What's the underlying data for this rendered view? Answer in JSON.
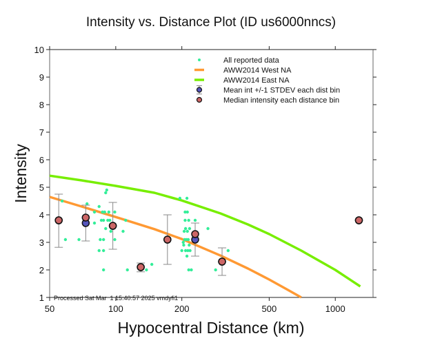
{
  "chart_data": {
    "type": "scatter",
    "title": "Intensity vs. Distance Plot (ID us6000nncs)",
    "xlabel": "Hypocentral Distance (km)",
    "ylabel": "Intensity",
    "xscale": "log",
    "xlim": [
      50,
      1400
    ],
    "ylim": [
      1,
      10
    ],
    "xticks": [
      50,
      100,
      200,
      500,
      1000
    ],
    "xtick_labels": [
      "50",
      "100",
      "200",
      "500",
      "1000"
    ],
    "yticks": [
      1,
      2,
      3,
      4,
      5,
      6,
      7,
      8,
      9,
      10
    ],
    "ytick_labels": [
      "1",
      "2",
      "3",
      "4",
      "5",
      "6",
      "7",
      "8",
      "9",
      "10"
    ],
    "grid": false,
    "legend_position": "top-right",
    "legend": [
      {
        "key": "all",
        "label": "All reported data",
        "color": "#33ee99"
      },
      {
        "key": "west",
        "label": "AWW2014 West NA",
        "color": "#ff9933"
      },
      {
        "key": "east",
        "label": "AWW2014 East NA",
        "color": "#77ee00"
      },
      {
        "key": "mean",
        "label": "Mean int +/-1 STDEV each dist bin",
        "color": "#5555bb"
      },
      {
        "key": "median",
        "label": "Median intensity each distance bin",
        "color": "#cc6666"
      }
    ],
    "footnote": "Processed Sat Mar  1 15:40:57 2025 vmdyfi1",
    "series": [
      {
        "name": "AWW2014 East NA",
        "kind": "line",
        "x": [
          50,
          70,
          100,
          150,
          200,
          300,
          400,
          500,
          700,
          1000,
          1300
        ],
        "y": [
          5.42,
          5.25,
          5.05,
          4.8,
          4.52,
          4.05,
          3.65,
          3.3,
          2.7,
          2.0,
          1.4
        ]
      },
      {
        "name": "AWW2014 West NA",
        "kind": "line",
        "x": [
          50,
          70,
          100,
          150,
          200,
          300,
          400,
          500,
          600,
          700
        ],
        "y": [
          4.65,
          4.3,
          3.92,
          3.48,
          3.12,
          2.52,
          2.05,
          1.65,
          1.3,
          1.0
        ]
      },
      {
        "name": "All reported data",
        "kind": "scatter",
        "points": [
          [
            57,
            4.5
          ],
          [
            59,
            3.1
          ],
          [
            68,
            3.1
          ],
          [
            74,
            4.4
          ],
          [
            80,
            3.7
          ],
          [
            80,
            4.1
          ],
          [
            84,
            2.7
          ],
          [
            84,
            4.3
          ],
          [
            85,
            3.1
          ],
          [
            86,
            3.8
          ],
          [
            87,
            4.1
          ],
          [
            88,
            2.0
          ],
          [
            88,
            2.7
          ],
          [
            88,
            3.1
          ],
          [
            88,
            3.8
          ],
          [
            89,
            4.1
          ],
          [
            90,
            4.8
          ],
          [
            90,
            3.5
          ],
          [
            91,
            4.9
          ],
          [
            92,
            3.8
          ],
          [
            93,
            4.1
          ],
          [
            94,
            3.8
          ],
          [
            95,
            3.4
          ],
          [
            99,
            4.1
          ],
          [
            99,
            3.1
          ],
          [
            108,
            3.4
          ],
          [
            111,
            3.8
          ],
          [
            113,
            2.0
          ],
          [
            138,
            2.0
          ],
          [
            146,
            2.2
          ],
          [
            196,
            4.6
          ],
          [
            200,
            2.7
          ],
          [
            203,
            3.0
          ],
          [
            204,
            2.9
          ],
          [
            205,
            3.4
          ],
          [
            206,
            3.1
          ],
          [
            207,
            4.1
          ],
          [
            207,
            3.8
          ],
          [
            208,
            2.7
          ],
          [
            208,
            3.5
          ],
          [
            210,
            3.1
          ],
          [
            211,
            4.6
          ],
          [
            211,
            2.5
          ],
          [
            212,
            4.1
          ],
          [
            212,
            3.4
          ],
          [
            213,
            2.7
          ],
          [
            214,
            3.1
          ],
          [
            215,
            2.0
          ],
          [
            215,
            3.8
          ],
          [
            216,
            2.9
          ],
          [
            217,
            3.5
          ],
          [
            218,
            2.7
          ],
          [
            221,
            2.0
          ],
          [
            230,
            3.8
          ],
          [
            263,
            3.5
          ],
          [
            285,
            2.0
          ],
          [
            325,
            2.7
          ]
        ]
      },
      {
        "name": "Mean int +/-1 STDEV each dist bin",
        "kind": "errorbar",
        "points": [
          {
            "x": 55,
            "y": 3.8,
            "ylow": 2.82,
            "yhigh": 4.75
          },
          {
            "x": 73,
            "y": 3.7,
            "ylow": 3.05,
            "yhigh": 4.35
          },
          {
            "x": 97,
            "y": 3.6,
            "ylow": 2.75,
            "yhigh": 4.45
          },
          {
            "x": 130,
            "y": 2.1,
            "ylow": 1.93,
            "yhigh": 2.25
          },
          {
            "x": 172,
            "y": 3.1,
            "ylow": 2.2,
            "yhigh": 4.0
          },
          {
            "x": 230,
            "y": 3.1,
            "ylow": 2.5,
            "yhigh": 3.7
          },
          {
            "x": 305,
            "y": 2.3,
            "ylow": 1.8,
            "yhigh": 2.8
          },
          {
            "x": 1281,
            "y": 3.8,
            "ylow": 3.8,
            "yhigh": 3.8
          }
        ]
      },
      {
        "name": "Median intensity each distance bin",
        "kind": "scatter",
        "points": [
          [
            55,
            3.8
          ],
          [
            73,
            3.9
          ],
          [
            97,
            3.6
          ],
          [
            130,
            2.1
          ],
          [
            172,
            3.1
          ],
          [
            230,
            3.3
          ],
          [
            305,
            2.3
          ],
          [
            1281,
            3.8
          ]
        ]
      }
    ]
  }
}
